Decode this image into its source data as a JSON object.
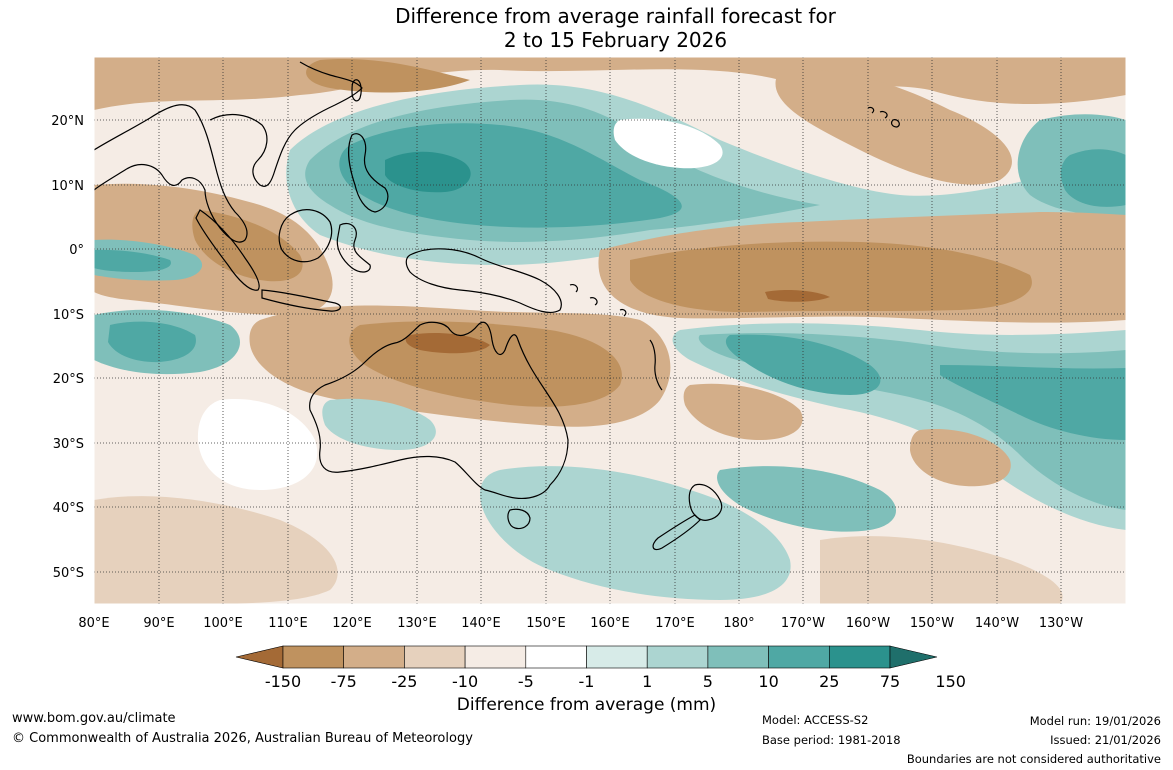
{
  "title": {
    "line1": "Difference from average rainfall forecast for",
    "line2": "2 to 15 February 2026"
  },
  "map": {
    "lon_ticks": [
      "80°E",
      "90°E",
      "100°E",
      "110°E",
      "120°E",
      "130°E",
      "140°E",
      "150°E",
      "160°E",
      "170°E",
      "180°",
      "170°W",
      "160°W",
      "150°W",
      "140°W",
      "130°W"
    ],
    "lat_ticks": [
      "20°N",
      "10°N",
      "0°",
      "10°S",
      "20°S",
      "30°S",
      "40°S",
      "50°S"
    ]
  },
  "colorbar": {
    "title": "Difference from average (mm)",
    "labels": [
      "-150",
      "-75",
      "-25",
      "-10",
      "-5",
      "-1",
      "1",
      "5",
      "10",
      "25",
      "75",
      "150"
    ],
    "colors": [
      "#a46a36",
      "#bf925f",
      "#d3ae89",
      "#e6d1bd",
      "#f5ece5",
      "#ffffff",
      "#d7ebe8",
      "#acd5d1",
      "#7fbfba",
      "#4fa8a4",
      "#2b928d",
      "#1f6f6b"
    ]
  },
  "footer": {
    "website": "www.bom.gov.au/climate",
    "copyright": "© Commonwealth of Australia 2026, Australian Bureau of Meteorology",
    "model": "Model: ACCESS-S2",
    "base_period": "Base period: 1981-2018",
    "model_run": "Model run: 19/01/2026",
    "issued": "Issued: 21/01/2026",
    "disclaimer": "Boundaries are not considered authoritative"
  }
}
